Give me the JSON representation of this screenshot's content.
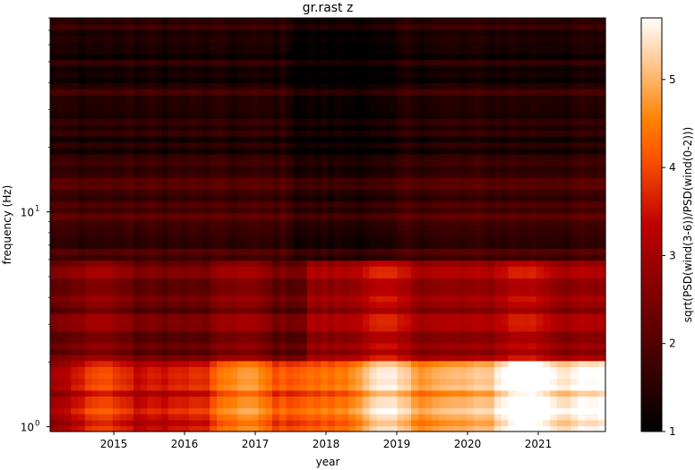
{
  "chart_data": {
    "type": "heatmap",
    "title": "gr.rast z",
    "xlabel": "year",
    "ylabel": "frequency (Hz)",
    "colorbar_label": "sqrt(PSD(wind(3-6))/PSD(wind(0-2)))",
    "colormap": "gist_heat",
    "xlim": [
      2014.1,
      2021.95
    ],
    "ylim": [
      0.95,
      80
    ],
    "yscale": "log",
    "clim": [
      1,
      5.7
    ],
    "x_ticks": [
      {
        "value": 2015,
        "label": "2015"
      },
      {
        "value": 2016,
        "label": "2016"
      },
      {
        "value": 2017,
        "label": "2017"
      },
      {
        "value": 2018,
        "label": "2018"
      },
      {
        "value": 2019,
        "label": "2019"
      },
      {
        "value": 2020,
        "label": "2020"
      },
      {
        "value": 2021,
        "label": "2021"
      }
    ],
    "y_ticks": [
      {
        "value": 1,
        "label": "10",
        "exp": "0"
      },
      {
        "value": 10,
        "label": "10",
        "exp": "1"
      }
    ],
    "colorbar_ticks": [
      {
        "value": 1,
        "label": "1"
      },
      {
        "value": 2,
        "label": "2"
      },
      {
        "value": 3,
        "label": "3"
      },
      {
        "value": 4,
        "label": "4"
      },
      {
        "value": 5,
        "label": "5"
      }
    ],
    "colors": {
      "lowest": "#000000",
      "low": "#5c0000",
      "mid": "#c02000",
      "high": "#ff8000",
      "highest": "#ffffff"
    }
  }
}
